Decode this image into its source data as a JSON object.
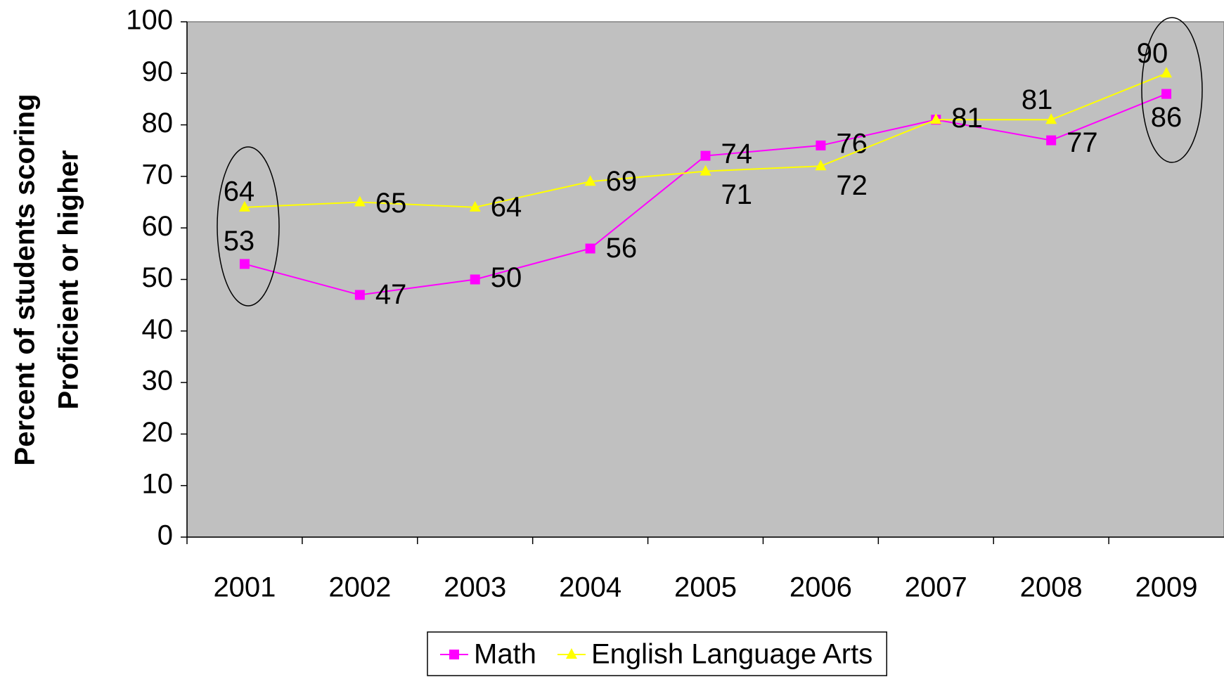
{
  "chart_data": {
    "type": "line",
    "ylabel": [
      "Percent of students scoring",
      "Proficient or higher"
    ],
    "categories": [
      "2001",
      "2002",
      "2003",
      "2004",
      "2005",
      "2006",
      "2007",
      "2008",
      "2009"
    ],
    "series": [
      {
        "name": "Math",
        "color": "#ff00ff",
        "marker": "square",
        "values": [
          53,
          47,
          50,
          56,
          74,
          76,
          81,
          77,
          86
        ]
      },
      {
        "name": "English Language Arts",
        "color": "#ffff00",
        "marker": "triangle",
        "values": [
          64,
          65,
          64,
          69,
          71,
          72,
          81,
          81,
          90
        ]
      }
    ],
    "ylim": [
      0,
      100
    ],
    "yticks": [
      0,
      10,
      20,
      30,
      40,
      50,
      60,
      70,
      80,
      90,
      100
    ],
    "background": "#c0c0c0",
    "legend": "bottom"
  }
}
